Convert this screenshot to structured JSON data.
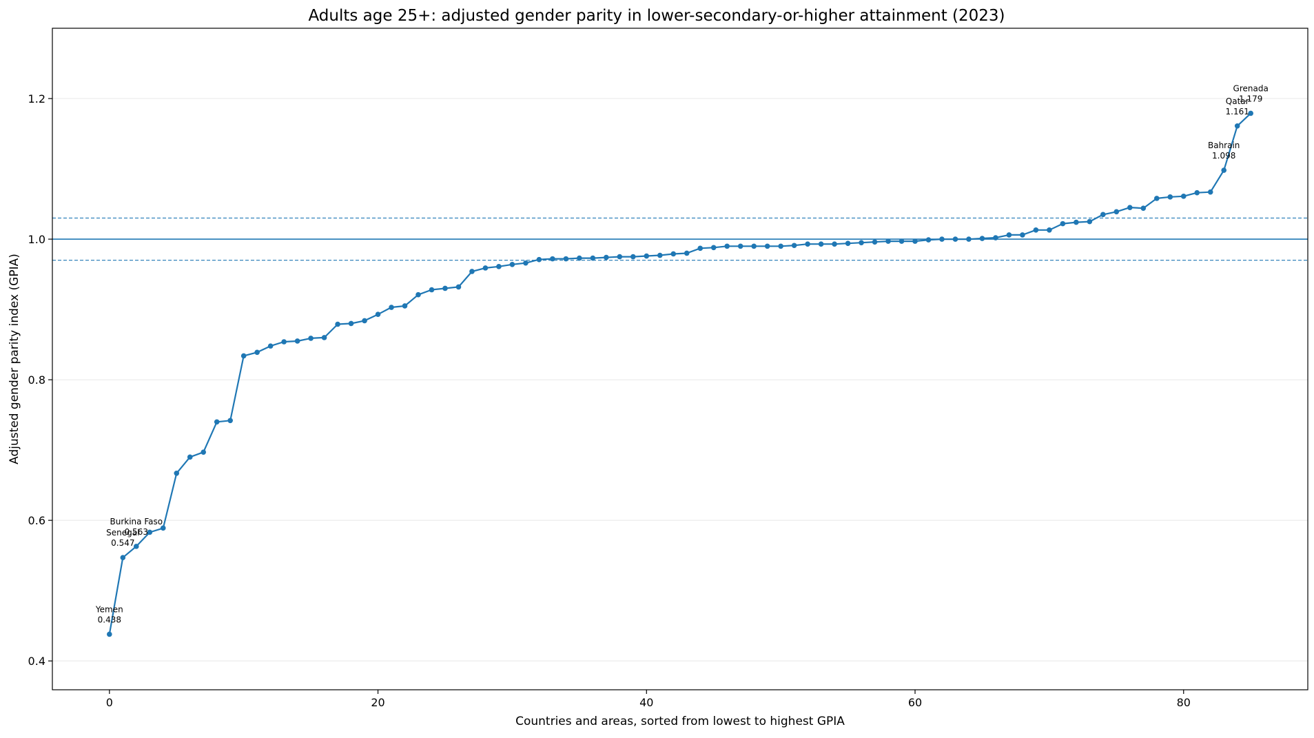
{
  "chart_data": {
    "type": "line",
    "title": "Adults age 25+: adjusted gender parity in lower-secondary-or-higher attainment (2023)",
    "xlabel": "Countries and areas, sorted from lowest to highest GPIA",
    "ylabel": "Adjusted gender parity index (GPIA)",
    "xlim": [
      -4.25,
      89.25
    ],
    "ylim": [
      0.359,
      1.3
    ],
    "xticks": [
      0,
      20,
      40,
      60,
      80
    ],
    "yticks": [
      0.4,
      0.6,
      0.8,
      1.0,
      1.2
    ],
    "xtick_labels": [
      "0",
      "20",
      "40",
      "60",
      "80"
    ],
    "ytick_labels": [
      "0.4",
      "0.6",
      "0.8",
      "1.0",
      "1.2"
    ],
    "grid": "horizontal",
    "reference_lines": [
      {
        "y": 1.0,
        "style": "solid"
      },
      {
        "y": 0.97,
        "style": "dashed"
      },
      {
        "y": 1.03,
        "style": "dashed"
      }
    ],
    "series": [
      {
        "color": "#1f77b4",
        "x": [
          0,
          1,
          2,
          3,
          4,
          5,
          6,
          7,
          8,
          9,
          10,
          11,
          12,
          13,
          14,
          15,
          16,
          17,
          18,
          19,
          20,
          21,
          22,
          23,
          24,
          25,
          26,
          27,
          28,
          29,
          30,
          31,
          32,
          33,
          34,
          35,
          36,
          37,
          38,
          39,
          40,
          41,
          42,
          43,
          44,
          45,
          46,
          47,
          48,
          49,
          50,
          51,
          52,
          53,
          54,
          55,
          56,
          57,
          58,
          59,
          60,
          61,
          62,
          63,
          64,
          65,
          66,
          67,
          68,
          69,
          70,
          71,
          72,
          73,
          74,
          75,
          76,
          77,
          78,
          79,
          80,
          81,
          82,
          83,
          84,
          85
        ],
        "y": [
          0.438,
          0.547,
          0.563,
          0.583,
          0.589,
          0.667,
          0.69,
          0.697,
          0.74,
          0.742,
          0.834,
          0.839,
          0.848,
          0.854,
          0.855,
          0.859,
          0.86,
          0.879,
          0.88,
          0.884,
          0.893,
          0.903,
          0.905,
          0.921,
          0.928,
          0.93,
          0.932,
          0.954,
          0.959,
          0.961,
          0.964,
          0.966,
          0.971,
          0.972,
          0.972,
          0.973,
          0.973,
          0.974,
          0.975,
          0.975,
          0.976,
          0.977,
          0.979,
          0.98,
          0.987,
          0.988,
          0.99,
          0.99,
          0.99,
          0.99,
          0.99,
          0.991,
          0.993,
          0.993,
          0.993,
          0.994,
          0.995,
          0.996,
          0.997,
          0.997,
          0.997,
          0.999,
          1.0,
          1.0,
          1.0,
          1.001,
          1.002,
          1.006,
          1.006,
          1.013,
          1.013,
          1.022,
          1.024,
          1.025,
          1.035,
          1.039,
          1.045,
          1.044,
          1.058,
          1.06,
          1.061,
          1.066,
          1.067,
          1.098,
          1.161,
          1.179
        ]
      }
    ],
    "annotations": [
      {
        "name": "Yemen",
        "value": "0.438",
        "x": 0,
        "y": 0.438
      },
      {
        "name": "Senegal",
        "value": "0.547",
        "x": 1,
        "y": 0.547
      },
      {
        "name": "Burkina Faso",
        "value": "0.563",
        "x": 2,
        "y": 0.563
      },
      {
        "name": "Bahrain",
        "value": "1.098",
        "x": 83,
        "y": 1.098
      },
      {
        "name": "Qatar",
        "value": "1.161",
        "x": 84,
        "y": 1.161
      },
      {
        "name": "Grenada",
        "value": "1.179",
        "x": 85,
        "y": 1.179
      }
    ]
  }
}
